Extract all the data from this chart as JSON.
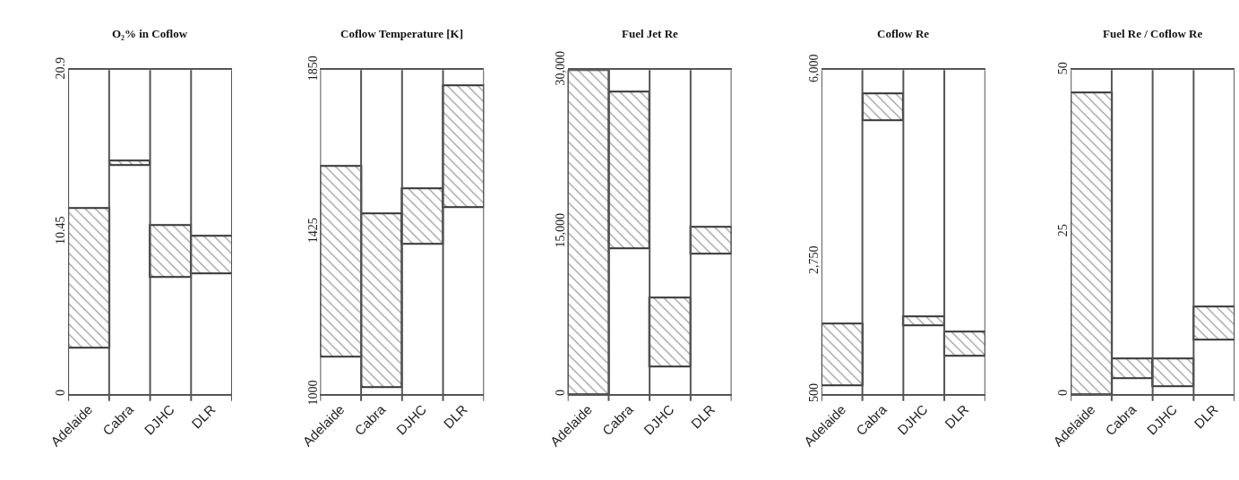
{
  "chart_data": [
    {
      "type": "bar",
      "title": "O₂% in Coflow",
      "categories": [
        "Adelaide",
        "Cabra",
        "DJHC",
        "DLR"
      ],
      "base": [
        3.0,
        14.8,
        7.6,
        7.8
      ],
      "values": [
        9.0,
        0.3,
        3.3,
        2.4
      ],
      "color": "#333333",
      "ylim": [
        0,
        20.9
      ],
      "yticks": [
        0,
        10.45,
        20.9
      ],
      "grid": "x"
    },
    {
      "type": "bar",
      "title": "Coflow Temperature [K]",
      "categories": [
        "Adelaide",
        "Cabra",
        "DJHC",
        "DLR"
      ],
      "base": [
        1100,
        1020,
        1395,
        1490
      ],
      "values": [
        500,
        455,
        145,
        320
      ],
      "color": "#333333",
      "ylim": [
        1000,
        1850
      ],
      "yticks": [
        1000,
        1425,
        1850
      ],
      "grid": "x"
    },
    {
      "type": "bar",
      "title": "Fuel Jet Re",
      "categories": [
        "Adelaide",
        "Cabra",
        "DJHC",
        "DLR"
      ],
      "base": [
        0,
        13500,
        2600,
        13000
      ],
      "values": [
        30000,
        14500,
        6400,
        2500
      ],
      "color": "#333333",
      "ylim": [
        0,
        30000
      ],
      "yticks": [
        0,
        {
          "value": 15000,
          "label": "15,000"
        },
        {
          "value": 30000,
          "label": "30,000"
        }
      ],
      "grid": "x"
    },
    {
      "type": "bar",
      "title": "Coflow Re",
      "categories": [
        "Adelaide",
        "Cabra",
        "DJHC",
        "DLR"
      ],
      "base": [
        650,
        5150,
        1670,
        1150
      ],
      "values": [
        1050,
        450,
        160,
        410
      ],
      "color": "#333333",
      "ylim": [
        500,
        6000
      ],
      "yticks": [
        500,
        {
          "value": 2750,
          "label": "2,750"
        },
        {
          "value": 6000,
          "label": "6,000"
        }
      ],
      "grid": "x"
    },
    {
      "type": "bar",
      "title": "Fuel Re / Coflow Re",
      "categories": [
        "Adelaide",
        "Cabra",
        "DJHC",
        "DLR"
      ],
      "base": [
        0,
        2.5,
        1.3,
        8.4
      ],
      "values": [
        46.5,
        3.0,
        4.2,
        5.2
      ],
      "color": "#333333",
      "ylim": [
        0,
        50
      ],
      "yticks": [
        0,
        25,
        50
      ],
      "grid": "x"
    }
  ]
}
